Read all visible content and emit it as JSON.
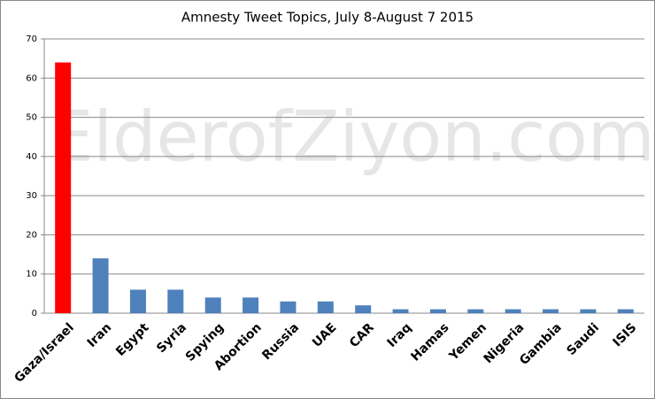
{
  "chart_data": {
    "type": "bar",
    "title": "Amnesty Tweet Topics, July 8-August 7 2015",
    "watermark": "ElderofZiyon.com",
    "categories": [
      "Gaza/Israel",
      "Iran",
      "Egypt",
      "Syria",
      "Spying",
      "Abortion",
      "Russia",
      "UAE",
      "CAR",
      "Iraq",
      "Hamas",
      "Yemen",
      "Nigeria",
      "Gambia",
      "Saudi",
      "ISIS"
    ],
    "values": [
      64,
      14,
      6,
      6,
      4,
      4,
      3,
      3,
      2,
      1,
      1,
      1,
      1,
      1,
      1,
      1
    ],
    "colors": [
      "#ff0000",
      "#4f81bd",
      "#4f81bd",
      "#4f81bd",
      "#4f81bd",
      "#4f81bd",
      "#4f81bd",
      "#4f81bd",
      "#4f81bd",
      "#4f81bd",
      "#4f81bd",
      "#4f81bd",
      "#4f81bd",
      "#4f81bd",
      "#4f81bd",
      "#4f81bd"
    ],
    "ylim": [
      0,
      70
    ],
    "yticks": [
      0,
      10,
      20,
      30,
      40,
      50,
      60,
      70
    ],
    "grid": true
  }
}
